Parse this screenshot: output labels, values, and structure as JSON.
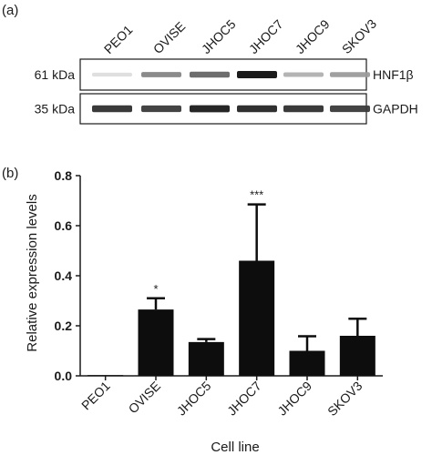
{
  "panel_a": {
    "label": "(a)",
    "lanes": [
      "PEO1",
      "OVISE",
      "JHOC5",
      "JHOC7",
      "JHOC9",
      "SKOV3"
    ],
    "rows": [
      {
        "mw": "61 kDa",
        "protein": "HNF1β",
        "intensity": [
          0.04,
          0.45,
          0.6,
          1.0,
          0.25,
          0.35
        ]
      },
      {
        "mw": "35 kDa",
        "protein": "GAPDH",
        "intensity": [
          0.85,
          0.8,
          0.95,
          0.9,
          0.85,
          0.8
        ]
      }
    ]
  },
  "chart_data": {
    "type": "bar",
    "label": "(b)",
    "categories": [
      "PEO1",
      "OVISE",
      "JHOC5",
      "JHOC7",
      "JHOC9",
      "SKOV3"
    ],
    "values": [
      0.003,
      0.265,
      0.135,
      0.46,
      0.1,
      0.16
    ],
    "errors": [
      0.0,
      0.045,
      0.012,
      0.225,
      0.058,
      0.068
    ],
    "annotations": [
      "",
      "*",
      "",
      "***",
      "",
      ""
    ],
    "xlabel": "Cell line",
    "ylabel": "Relative expression levels",
    "ylim": [
      0,
      0.8
    ],
    "yticks": [
      0.0,
      0.2,
      0.4,
      0.6,
      0.8
    ],
    "ytick_labels": [
      "0.0",
      "0.2",
      "0.4",
      "0.6",
      "0.8"
    ],
    "grid": false,
    "bar_color": "#0d0d0d"
  }
}
